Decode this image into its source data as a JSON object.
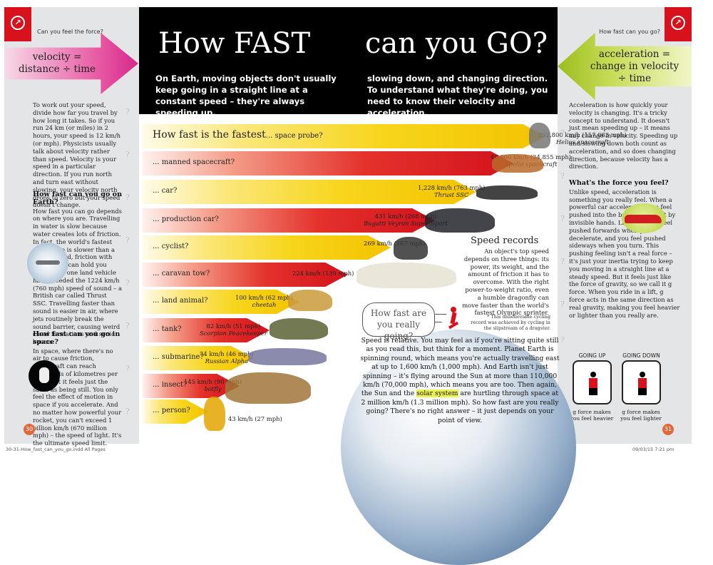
{
  "left_page": {
    "corner_tag": "Can you feel the force?",
    "arrow_line1": "velocity =",
    "arrow_line2": "distance ÷ time",
    "intro": "To work out your speed, divide how far you travel by how long it takes. So if you run 24 km (or miles) in 2 hours, your speed is 12 km/h (or mph). Physicists usually talk about velocity rather than speed. Velocity is your speed in a particular direction. If you run north and turn east without slowing, your velocity north drops to zero but your speed doesn't change.",
    "earth_heading": "How fast can you go on Earth?",
    "earth_text": "How fast you can go depends on where you are. Travelling in water is slow because water creates lots of friction. In fact, the world's fastest submarine is slower than a bus. On land, friction with the ground can hold you back. Only one land vehicle has exceeded the 1224 km/h (760 mph) speed of sound – a British car called Thrust SSC. Travelling faster than sound is easier in air, where jets routinely break the sound barrier, causing weird cloud formations and sonic booms.",
    "space_heading": "How fast can you go in space?",
    "space_text": "In space, where there's no air to cause friction, spacecraft can reach thousands of kilometres per hour. But it feels just the same as being still. You only feel the effect of motion in space if you accelerate. And no matter how powerful your rocket, you can't exceed 1 billion km/h (670 million mph) – the speed of light. It's the ultimate speed limit.",
    "page_number": "30"
  },
  "header": {
    "title_left": "How FAST",
    "title_right": "can you GO?",
    "intro_left": "On Earth, moving objects don't usually keep going in a straight line at a constant speed – they're always speeding up,",
    "intro_right": "slowing down, and changing direction. To understand what they're doing, you need to know their velocity and acceleration."
  },
  "speeds": [
    {
      "label_main": "How fast is the fastest",
      "label": "... space probe?",
      "speed": "252,800 km/h (157,083 mph)",
      "name": "Helios spacecraft",
      "color": "yellow"
    },
    {
      "label": "... manned spacecraft?",
      "speed": "40,000 km/h (24,855 mph)",
      "name": "Apollo spacecraft",
      "color": "red"
    },
    {
      "label": "... car?",
      "speed": "1,228 km/h (763 mph)",
      "name": "Thrust SSC",
      "color": "yellow"
    },
    {
      "label": "... production car?",
      "speed": "431 km/h (268 mph)",
      "name": "Bugatti Veyron Super Sport",
      "color": "red"
    },
    {
      "label": "... cyclist?",
      "speed": "269 km/h (167 mph)",
      "name": "",
      "color": "yellow"
    },
    {
      "label": "... caravan tow?",
      "speed": "224 km/h (139 mph)",
      "name": "",
      "color": "red"
    },
    {
      "label": "... land animal?",
      "speed": "100 km/h (62 mph)",
      "name": "cheetah",
      "color": "yellow"
    },
    {
      "label": "... tank?",
      "speed": "82 km/h (51 mph)",
      "name": "Scorpion Peacekeeper",
      "color": "red"
    },
    {
      "label": "... submarine?",
      "speed": "74 km/h (46 mph)",
      "name": "Russian Alpha",
      "color": "yellow"
    },
    {
      "label": "... insect?",
      "speed": "145 km/h (90 mph)",
      "name": "botfly",
      "color": "red"
    },
    {
      "label": "... person?",
      "speed": "43 km/h (27 mph)",
      "name": "",
      "color": "yellow"
    }
  ],
  "records": {
    "title": "Speed records",
    "text": "An object's top speed depends on three things: its power, its weight, and the amount of friction it has to overcome. With the right power-to-weight ratio, even a humble dragonfly can move faster than the world's fastest Olympic sprinter.",
    "footnote": "* This unbelievable cycling record was achieved by cycling in the slipstream of a dragster."
  },
  "bubble": {
    "line1": "How fast are",
    "line2": "you really going?"
  },
  "relative": {
    "before": "Speed is relative. You may feel as if you're sitting quite still as you read this, but think for a moment. Planet Earth is spinning round, which means you're actually travelling east at up to 1,600 km/h (1,000 mph). And Earth isn't just spinning – it's flying around the Sun at more than 110,000 km/h (70,000 mph), which means you are too. Then again, the Sun and the",
    "highlight": "solar system",
    "after": "are hurtling through space at 2 million km/h (1.3 million mph). So how fast are you really going? There's no right answer – it just depends on your point of view."
  },
  "right_page": {
    "corner_tag": "How fast can you go?",
    "arrow_line1": "acceleration =",
    "arrow_line2": "change in velocity",
    "arrow_line3": "÷ time",
    "intro": "Acceleration is how quickly your velocity is changing. It's a tricky concept to understand. It doesn't just mean speeding up – it means any change in velocity. Speeding up and slowing down both count as acceleration, and so does changing direction, because velocity has a direction.",
    "force_heading": "What's the force you feel?",
    "force_text": "Unlike speed, acceleration is something you really feel. When a powerful car accelerates, you feel pushed into the back of the seat by invisible hands. Likewise, you feel pushed forwards when you decelerate, and you feel pushed sideways when you turn. This pushing feeling isn't a real force – it's just your inertia trying to keep you moving in a straight line at a steady speed. But it feels just like the force of gravity, so we call it g force. When you ride in a lift, g force acts in the same direction as real gravity, making you feel heavier or lighter than you really are.",
    "going_up": "GOING UP",
    "going_down": "GOING DOWN",
    "up_note": "g force makes you feel heavier",
    "down_note": "g force makes you feel lighter",
    "page_number": "31"
  },
  "footer": {
    "file": "30-31-How_fast_can_you_go.indd   All Pages",
    "date": "09/03/15   7:21 pm"
  },
  "colors": {
    "red": "#d8121c",
    "yellow": "#f3c300",
    "pink": "#d6288a",
    "lime": "#9bbd1d"
  }
}
